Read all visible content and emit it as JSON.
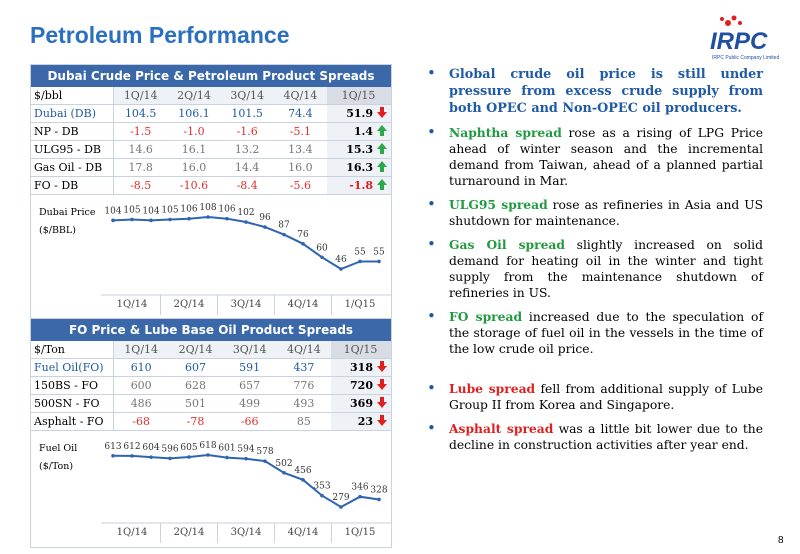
{
  "title": "Petroleum Performance",
  "logo": {
    "text": "IRPC",
    "subtext": "IRPC Public Company Limited"
  },
  "page_number": "8",
  "table1": {
    "title": "Dubai Crude Price & Petroleum Product Spreads",
    "header": [
      "$/bbl",
      "1Q/14",
      "2Q/14",
      "3Q/14",
      "4Q/14",
      "1Q/15"
    ],
    "rows": [
      [
        "Dubai (DB)",
        "104.5",
        "106.1",
        "101.5",
        "74.4",
        "51.9"
      ],
      [
        "NP - DB",
        "-1.5",
        "-1.0",
        "-1.6",
        "-5.1",
        "1.4"
      ],
      [
        "ULG95 - DB",
        "14.6",
        "16.1",
        "13.2",
        "13.4",
        "15.3"
      ],
      [
        "Gas Oil - DB",
        "17.8",
        "16.0",
        "14.4",
        "16.0",
        "16.3"
      ],
      [
        "FO - DB",
        "-8.5",
        "-10.6",
        "-8.4",
        "-5.6",
        "-1.8"
      ]
    ],
    "arrows": [
      "down",
      "up",
      "up",
      "up",
      "up"
    ]
  },
  "chart1": {
    "type": "line",
    "label": [
      "Dubai Price",
      "($/BBL)"
    ],
    "quarters": [
      "1Q/14",
      "2Q/14",
      "3Q/14",
      "4Q/14",
      "1/Q15"
    ],
    "values": [
      104,
      105,
      104,
      105,
      106,
      108,
      106,
      102,
      96,
      87,
      76,
      60,
      46,
      55,
      55
    ],
    "color": "#2f64b0"
  },
  "table2": {
    "title": "FO Price & Lube Base Oil Product Spreads",
    "header": [
      "$/Ton",
      "1Q/14",
      "2Q/14",
      "3Q/14",
      "4Q/14",
      "1Q/15"
    ],
    "rows": [
      [
        "Fuel Oil(FO)",
        "610",
        "607",
        "591",
        "437",
        "318"
      ],
      [
        "150BS - FO",
        "600",
        "628",
        "657",
        "776",
        "720"
      ],
      [
        "500SN - FO",
        "486",
        "501",
        "499",
        "493",
        "369"
      ],
      [
        "Asphalt - FO",
        "-68",
        "-78",
        "-66",
        "85",
        "23"
      ]
    ],
    "arrows": [
      "down",
      "down",
      "down",
      "down"
    ]
  },
  "chart2": {
    "type": "line",
    "label": [
      "Fuel Oil",
      "($/Ton)"
    ],
    "quarters": [
      "1Q/14",
      "2Q/14",
      "3Q/14",
      "4Q/14",
      "1Q/15"
    ],
    "values": [
      613,
      612,
      604,
      596,
      605,
      618,
      601,
      594,
      578,
      502,
      456,
      353,
      279,
      346,
      328
    ],
    "color": "#2f64b0"
  },
  "bullets": [
    {
      "highlight": "Global crude oil price is still under pressure from excess crude supply from both OPEC and Non-OPEC oil producers.",
      "text": "",
      "color": "#1f5aa6"
    },
    {
      "highlight": "Naphtha spread",
      "text": " rose as a rising of LPG Price ahead of winter season and the incremental demand from Taiwan, ahead of a planned partial turnaround in Mar.",
      "color": "#1f9a3e"
    },
    {
      "highlight": "ULG95 spread",
      "text": " rose as refineries in Asia and US shutdown for maintenance.",
      "color": "#1f9a3e"
    },
    {
      "highlight": "Gas Oil spread",
      "text": " slightly increased on solid demand for heating oil in the winter and tight supply from the maintenance shutdown of refineries in US.",
      "color": "#1f9a3e"
    },
    {
      "highlight": "FO spread",
      "text": " increased due to the speculation of the storage of fuel oil in the vessels in the time of the low crude oil price.",
      "color": "#1f9a3e"
    },
    {
      "highlight": "Lube spread",
      "text": "  fell from additional supply of Lube Group II from Korea and Singapore.",
      "color": "#e02020"
    },
    {
      "highlight": "Asphalt spread",
      "text": "  was a little bit lower due to the decline in construction activities after year end.",
      "color": "#e02020"
    }
  ]
}
